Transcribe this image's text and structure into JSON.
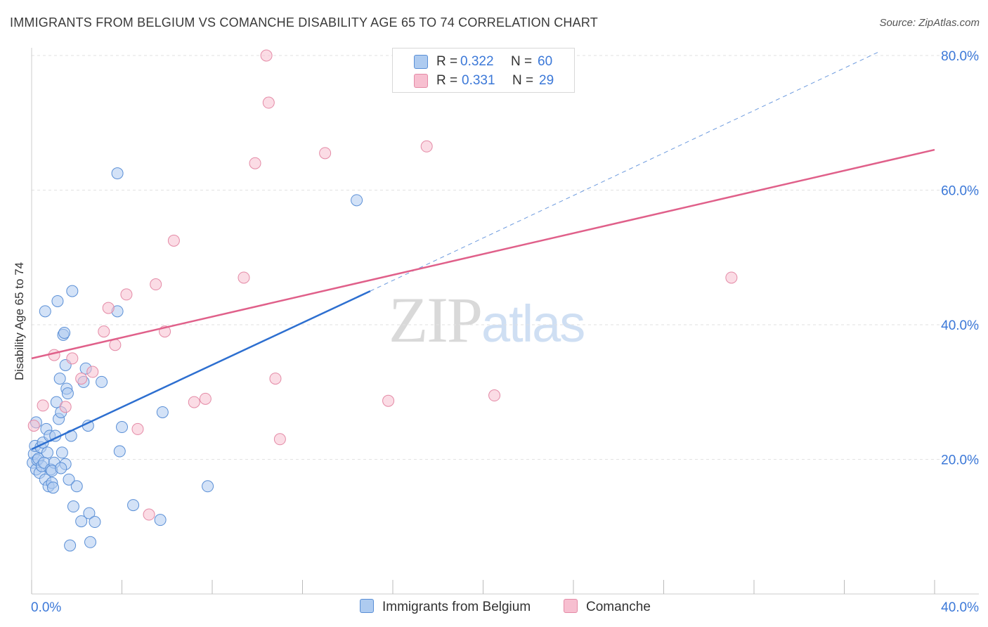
{
  "title": "IMMIGRANTS FROM BELGIUM VS COMANCHE DISABILITY AGE 65 TO 74 CORRELATION CHART",
  "source": "Source: ZipAtlas.com",
  "watermark": {
    "zip": "ZIP",
    "atlas": "atlas"
  },
  "legend": {
    "rows": [
      {
        "r_label": "R =",
        "r_value": "0.322",
        "n_label": "N =",
        "n_value": "60"
      },
      {
        "r_label": "R =",
        "r_value": "0.331",
        "n_label": "N =",
        "n_value": "29"
      }
    ]
  },
  "colors": {
    "blue_fill": "#aecbf0",
    "blue_stroke": "#5a8fd6",
    "blue_line": "#2d6fd0",
    "pink_fill": "#f7bfd0",
    "pink_stroke": "#e48aa6",
    "pink_line": "#e0608a",
    "tick_label": "#3b78d8",
    "grid": "#e2e2e2"
  },
  "chart_data": {
    "type": "scatter",
    "title": "IMMIGRANTS FROM BELGIUM VS COMANCHE DISABILITY AGE 65 TO 74 CORRELATION CHART",
    "xlabel": "",
    "ylabel": "Disability Age 65 to 74",
    "xlim": [
      0,
      40
    ],
    "ylim": [
      0,
      80
    ],
    "x_tick_labels": [
      "0.0%",
      "40.0%"
    ],
    "y_tick_labels": [
      "20.0%",
      "40.0%",
      "60.0%",
      "80.0%"
    ],
    "y_ticks": [
      20,
      40,
      60,
      80
    ],
    "grid": true,
    "legend_position": "top-center",
    "series": [
      {
        "name": "Immigrants from Belgium",
        "r": 0.322,
        "n": 60,
        "points": [
          [
            0.05,
            19.5
          ],
          [
            0.1,
            20.8
          ],
          [
            0.15,
            22.0
          ],
          [
            0.2,
            18.5
          ],
          [
            0.25,
            19.9
          ],
          [
            0.3,
            20.1
          ],
          [
            0.35,
            18.0
          ],
          [
            0.4,
            21.8
          ],
          [
            0.45,
            19.0
          ],
          [
            0.5,
            22.5
          ],
          [
            0.55,
            19.5
          ],
          [
            0.6,
            17.0
          ],
          [
            0.65,
            24.5
          ],
          [
            0.7,
            21.0
          ],
          [
            0.75,
            16.0
          ],
          [
            0.8,
            23.5
          ],
          [
            0.85,
            18.5
          ],
          [
            0.9,
            16.5
          ],
          [
            0.95,
            15.8
          ],
          [
            1.0,
            19.5
          ],
          [
            1.05,
            23.5
          ],
          [
            1.1,
            28.5
          ],
          [
            1.15,
            43.5
          ],
          [
            1.2,
            26.0
          ],
          [
            1.25,
            32.0
          ],
          [
            1.3,
            27.0
          ],
          [
            1.35,
            21.0
          ],
          [
            1.4,
            38.5
          ],
          [
            1.45,
            38.8
          ],
          [
            1.5,
            19.3
          ],
          [
            1.55,
            30.5
          ],
          [
            1.6,
            29.8
          ],
          [
            1.65,
            17.0
          ],
          [
            1.7,
            7.2
          ],
          [
            1.75,
            23.5
          ],
          [
            1.8,
            45.0
          ],
          [
            1.85,
            13.0
          ],
          [
            2.0,
            16.0
          ],
          [
            2.2,
            10.8
          ],
          [
            2.3,
            31.5
          ],
          [
            2.4,
            33.5
          ],
          [
            2.5,
            25.0
          ],
          [
            2.55,
            12.0
          ],
          [
            2.6,
            7.7
          ],
          [
            2.8,
            10.7
          ],
          [
            3.1,
            31.5
          ],
          [
            3.8,
            62.5
          ],
          [
            3.8,
            42.0
          ],
          [
            3.9,
            21.2
          ],
          [
            4.0,
            24.8
          ],
          [
            4.5,
            13.2
          ],
          [
            5.8,
            27.0
          ],
          [
            5.7,
            11.0
          ],
          [
            7.8,
            16.0
          ],
          [
            0.6,
            42.0
          ],
          [
            0.2,
            25.5
          ],
          [
            0.9,
            18.3
          ],
          [
            1.5,
            34.0
          ],
          [
            14.4,
            58.5
          ],
          [
            1.3,
            18.7
          ]
        ]
      },
      {
        "name": "Comanche",
        "r": 0.331,
        "n": 29,
        "points": [
          [
            0.1,
            25.0
          ],
          [
            0.5,
            28.0
          ],
          [
            1.0,
            35.5
          ],
          [
            1.5,
            27.8
          ],
          [
            1.8,
            35.0
          ],
          [
            2.2,
            32.0
          ],
          [
            2.7,
            33.0
          ],
          [
            3.2,
            39.0
          ],
          [
            3.4,
            42.5
          ],
          [
            3.7,
            37.0
          ],
          [
            4.2,
            44.5
          ],
          [
            4.7,
            24.5
          ],
          [
            5.2,
            11.8
          ],
          [
            5.5,
            46.0
          ],
          [
            5.9,
            39.0
          ],
          [
            6.3,
            52.5
          ],
          [
            7.2,
            28.5
          ],
          [
            7.7,
            29.0
          ],
          [
            9.4,
            47.0
          ],
          [
            9.9,
            64.0
          ],
          [
            10.5,
            73.0
          ],
          [
            10.4,
            80.0
          ],
          [
            10.8,
            32.0
          ],
          [
            11.0,
            23.0
          ],
          [
            13.0,
            65.5
          ],
          [
            15.8,
            28.7
          ],
          [
            17.5,
            66.5
          ],
          [
            20.5,
            29.5
          ],
          [
            31.0,
            47.0
          ]
        ]
      }
    ],
    "trend_lines": [
      {
        "series": "Immigrants from Belgium",
        "x1": 0,
        "y1": 21.5,
        "x2": 15,
        "y2": 45,
        "extended_dashed_to": [
          37.5,
          80.5
        ]
      },
      {
        "series": "Comanche",
        "x1": 0,
        "y1": 35,
        "x2": 40,
        "y2": 66
      }
    ]
  },
  "bottom_legend": [
    {
      "label": "Immigrants from Belgium"
    },
    {
      "label": "Comanche"
    }
  ]
}
